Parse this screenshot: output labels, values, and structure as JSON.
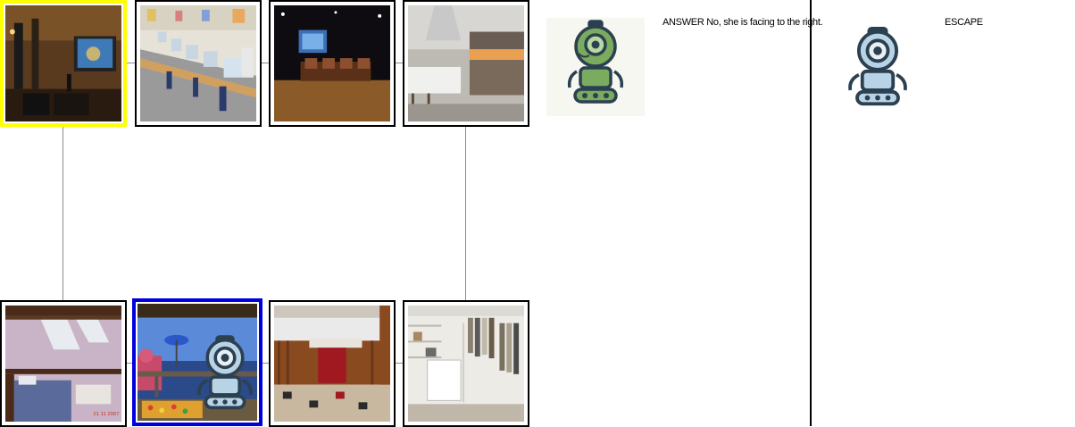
{
  "answer_panel": {
    "text": "ANSWER No, she is facing to the right."
  },
  "escape_panel": {
    "label": "ESCAPE"
  },
  "board": {
    "tiles": [
      {
        "scene": "home-theater-room",
        "highlight": "yellow"
      },
      {
        "scene": "computer-lab"
      },
      {
        "scene": "arcade-room"
      },
      {
        "scene": "modern-kitchen"
      },
      {
        "scene": "attic-bedroom"
      },
      {
        "scene": "balcony-with-robot",
        "highlight": "blue"
      },
      {
        "scene": "basement-bar"
      },
      {
        "scene": "walk-in-closet"
      }
    ]
  },
  "colors": {
    "highlight_yellow": "#ffff00",
    "highlight_blue": "#0000dd",
    "robot_green": "#7aab5e",
    "robot_blue": "#b9d3e6",
    "outline": "#2b4050"
  },
  "icons": [
    "green-robot-icon",
    "blue-robot-icon"
  ]
}
